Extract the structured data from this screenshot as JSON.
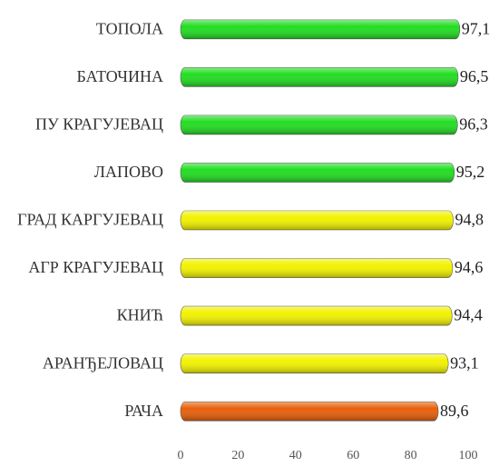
{
  "chart_data": {
    "type": "bar",
    "orientation": "horizontal",
    "categories": [
      "ТОПОЛА",
      "БАТОЧИНА",
      "ПУ КРАГУЈЕВАЦ",
      "ЛАПОВО",
      "ГРАД КАРГУЈЕВАЦ",
      "АГР КРАГУЈЕВАЦ",
      "КНИЋ",
      "АРАНЂЕЛОВАЦ",
      "РАЧА"
    ],
    "values": [
      97.1,
      96.5,
      96.3,
      95.2,
      94.8,
      94.6,
      94.4,
      93.1,
      89.6
    ],
    "value_labels": [
      "97,1",
      "96,5",
      "96,3",
      "95,2",
      "94,8",
      "94,6",
      "94,4",
      "93,1",
      "89,6"
    ],
    "colors": [
      "#22dd22",
      "#22dd22",
      "#22dd22",
      "#22dd22",
      "#f2f200",
      "#f2f200",
      "#f2f200",
      "#f2f200",
      "#e8600a"
    ],
    "xlim": [
      0,
      100
    ],
    "xticks": [
      0,
      20,
      40,
      60,
      80,
      100
    ],
    "grid": false
  }
}
